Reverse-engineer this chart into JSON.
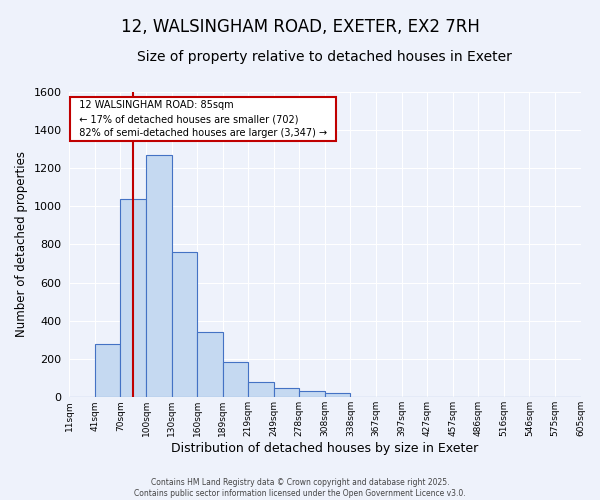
{
  "title": "12, WALSINGHAM ROAD, EXETER, EX2 7RH",
  "subtitle": "Size of property relative to detached houses in Exeter",
  "xlabel": "Distribution of detached houses by size in Exeter",
  "ylabel": "Number of detached properties",
  "bin_labels": [
    "11sqm",
    "41sqm",
    "70sqm",
    "100sqm",
    "130sqm",
    "160sqm",
    "189sqm",
    "219sqm",
    "249sqm",
    "278sqm",
    "308sqm",
    "338sqm",
    "367sqm",
    "397sqm",
    "427sqm",
    "457sqm",
    "486sqm",
    "516sqm",
    "546sqm",
    "575sqm",
    "605sqm"
  ],
  "bar_values": [
    0,
    280,
    1040,
    1270,
    760,
    340,
    185,
    80,
    50,
    35,
    25,
    0,
    0,
    0,
    0,
    0,
    0,
    0,
    0,
    0
  ],
  "bar_color": "#c5d9f1",
  "bar_edge_color": "#4472c4",
  "vline_color": "#c00000",
  "annotation_title": "12 WALSINGHAM ROAD: 85sqm",
  "annotation_line1": "← 17% of detached houses are smaller (702)",
  "annotation_line2": "82% of semi-detached houses are larger (3,347) →",
  "annotation_box_color": "#ffffff",
  "annotation_box_edge_color": "#c00000",
  "ylim": [
    0,
    1600
  ],
  "yticks": [
    0,
    200,
    400,
    600,
    800,
    1000,
    1200,
    1400,
    1600
  ],
  "bg_color": "#eef2fb",
  "grid_color": "#ffffff",
  "footer_line1": "Contains HM Land Registry data © Crown copyright and database right 2025.",
  "footer_line2": "Contains public sector information licensed under the Open Government Licence v3.0.",
  "title_fontsize": 12,
  "subtitle_fontsize": 10,
  "vline_x": 2.5
}
